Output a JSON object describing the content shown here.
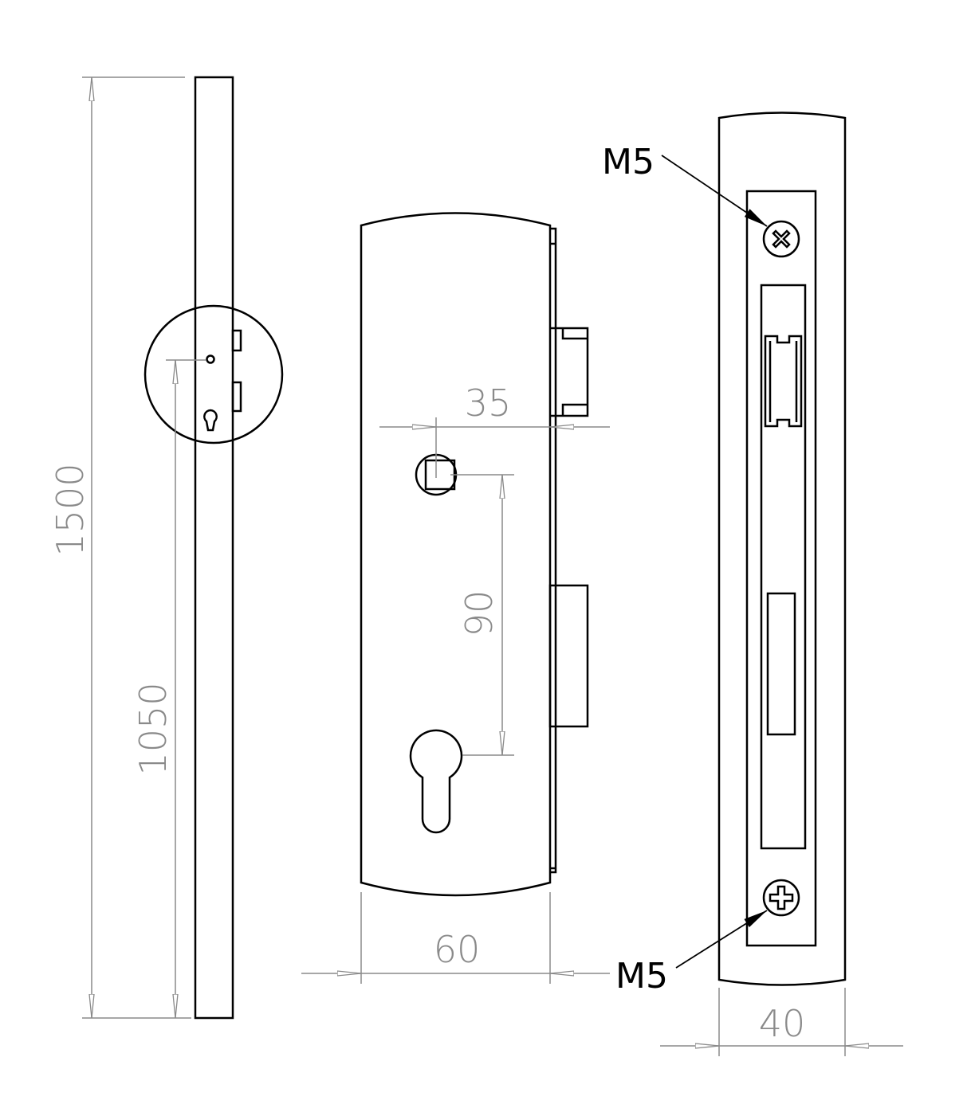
{
  "dimensions": {
    "total_height": "1500",
    "handle_height": "1050",
    "backset": "35",
    "center_distance": "90",
    "faceplate_width_front": "60",
    "faceplate_width_side": "40"
  },
  "labels": {
    "screw_top": "M5",
    "screw_bottom": "M5"
  },
  "colors": {
    "outline": "#000000",
    "dimension": "#8a8a8a"
  }
}
